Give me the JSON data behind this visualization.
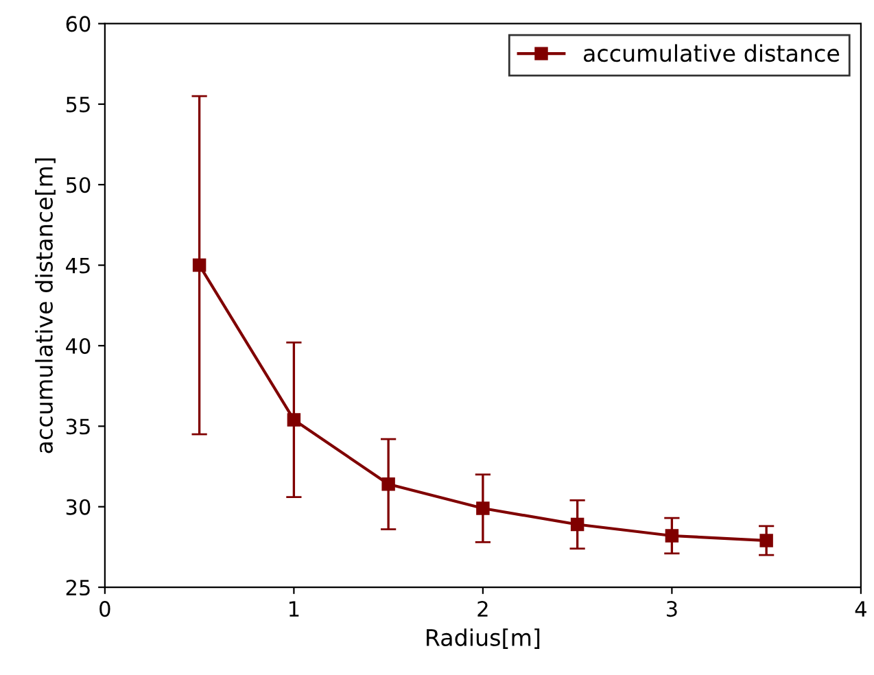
{
  "chart_data": {
    "type": "line",
    "xlabel": "Radius[m]",
    "ylabel": "accumulative distance[m]",
    "x": [
      0.5,
      1,
      1.5,
      2,
      2.5,
      3,
      3.5
    ],
    "series": [
      {
        "name": "accumulative distance",
        "color": "#800000",
        "values": [
          45.0,
          35.4,
          31.4,
          29.9,
          28.9,
          28.2,
          27.9
        ],
        "errors": [
          10.5,
          4.8,
          2.8,
          2.1,
          1.5,
          1.1,
          0.9
        ]
      }
    ],
    "xlim": [
      0,
      4
    ],
    "xticks": [
      0,
      1,
      2,
      3,
      4
    ],
    "ylim": [
      25,
      60
    ],
    "yticks": [
      25,
      30,
      35,
      40,
      45,
      50,
      55,
      60
    ],
    "legend": "top right",
    "marker": "square",
    "line_style": "solid",
    "grid": false
  }
}
